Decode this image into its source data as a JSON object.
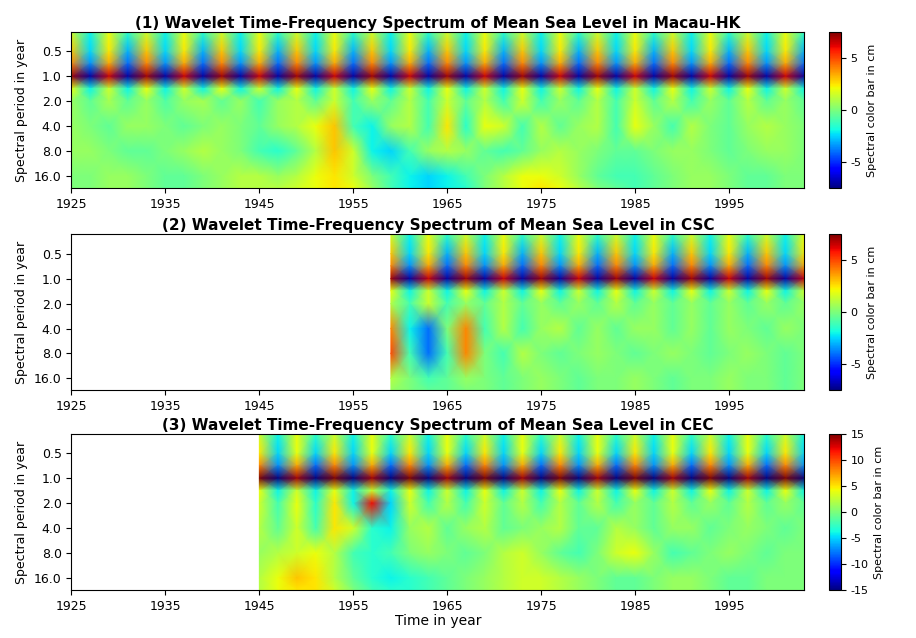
{
  "chart_data": [
    {
      "type": "heatmap",
      "title": "(1) Wavelet Time-Frequency Spectrum of Mean Sea Level in Macau-HK",
      "y_label": "Spectral period in year",
      "log": "y",
      "xlim": [
        1925,
        2003
      ],
      "xticks": [
        1925,
        1935,
        1945,
        1955,
        1965,
        1975,
        1985,
        1995
      ],
      "ylim": [
        22.4,
        0.29
      ],
      "yticks": [
        {
          "value": 0.5,
          "label": "0.5"
        },
        {
          "value": 1,
          "label": "1.0"
        },
        {
          "value": 2,
          "label": "2.0"
        },
        {
          "value": 4,
          "label": "4.0"
        },
        {
          "value": 8,
          "label": "8.0"
        },
        {
          "value": 16,
          "label": "16.0"
        }
      ],
      "x": [
        1925,
        1927,
        1929,
        1931,
        1933,
        1935,
        1937,
        1939,
        1941,
        1943,
        1945,
        1947,
        1949,
        1951,
        1953,
        1955,
        1957,
        1959,
        1961,
        1963,
        1965,
        1967,
        1969,
        1971,
        1973,
        1975,
        1977,
        1979,
        1981,
        1983,
        1985,
        1987,
        1989,
        1991,
        1993,
        1995,
        1997,
        1999,
        2001,
        2003
      ],
      "y": [
        0.29,
        0.5,
        0.7,
        1.0,
        1.4,
        2.0,
        4.0,
        8.0,
        16.0,
        22.4
      ],
      "cells": [
        [
          1.5,
          -2,
          2,
          -1.5,
          1.5,
          -2,
          2,
          -1.5,
          1.5,
          -2,
          2,
          -1.5,
          1.5,
          -2,
          2,
          -1.5,
          1.5,
          -2,
          2,
          -1.5,
          1.5,
          -2,
          2,
          -1.5,
          1.5,
          -2,
          2,
          -1.5,
          1.5,
          -2,
          2,
          -1.5,
          1.5,
          -2,
          2,
          -1.5,
          1.5,
          -2,
          2,
          -1.5
        ],
        [
          3,
          -2.5,
          2.5,
          -3,
          3,
          -2.5,
          2.5,
          -3,
          3,
          -2.5,
          2.5,
          -3,
          3,
          -2.5,
          2.5,
          -3,
          3,
          -2.5,
          2.5,
          -3,
          3,
          -2.5,
          2.5,
          -3,
          3,
          -2.5,
          2.5,
          -3,
          3,
          -2.5,
          2.5,
          -3,
          3,
          -2.5,
          2.5,
          -3,
          3,
          -2.5,
          2.5,
          -3
        ],
        [
          4,
          -3.5,
          3.5,
          -4,
          4,
          -3.5,
          3.5,
          -4,
          4,
          -3.5,
          3.5,
          -4,
          4,
          -3.5,
          3.5,
          -4,
          4,
          -3.5,
          3.5,
          -4,
          4,
          -3.5,
          3.5,
          -4,
          4,
          -3.5,
          3.5,
          -4,
          4,
          -3.5,
          3.5,
          -4,
          4,
          -3.5,
          3.5,
          -4,
          4,
          -3.5,
          3.5,
          -4
        ],
        [
          7,
          -7,
          6.5,
          -7,
          7,
          -7,
          6.5,
          -7,
          7,
          -7,
          6.5,
          -7,
          7,
          -7,
          6.5,
          -7,
          7,
          -7,
          6.5,
          -7,
          7,
          -7,
          6.5,
          -7,
          7,
          -7,
          6.5,
          -7,
          7,
          -7,
          6.5,
          -7,
          7,
          -7,
          6.5,
          -7,
          7,
          -7,
          6.5,
          -7
        ],
        [
          2,
          -2,
          1.5,
          -2,
          2,
          -2,
          1.5,
          -2,
          2,
          -2,
          1.5,
          -2,
          2,
          -2,
          1.5,
          -2,
          2,
          -2,
          1.5,
          -2,
          2,
          -2,
          1.5,
          -2,
          2,
          -2,
          1.5,
          -2,
          2,
          -2,
          1.5,
          -2,
          2,
          -2,
          1.5,
          -2,
          2,
          -2,
          1.5,
          -2
        ],
        [
          0.5,
          -0.5,
          0.8,
          -0.5,
          0.5,
          -0.8,
          0.5,
          0.8,
          -0.5,
          0.5,
          -1,
          0.5,
          1,
          -0.5,
          1.5,
          -1,
          0.5,
          -0.5,
          1,
          -1,
          1.5,
          -0.5,
          1,
          -1,
          1.5,
          -1,
          0.5,
          -0.5,
          1,
          -1,
          1.5,
          -0.5,
          1,
          -1,
          0.5,
          -0.5,
          1,
          -0.5,
          0.5,
          -0.5
        ],
        [
          0.5,
          0,
          -0.5,
          0.5,
          0.5,
          0,
          -0.5,
          0,
          0.5,
          0,
          -0.5,
          0.5,
          1,
          2,
          3,
          -1,
          -2,
          0.5,
          1,
          -1,
          2.5,
          -1.5,
          2,
          1.5,
          -1,
          1,
          -0.5,
          0.5,
          1,
          -1,
          2,
          0.5,
          -1,
          1,
          0,
          -0.5,
          0.5,
          1,
          0.5,
          0
        ],
        [
          0.5,
          0.5,
          0,
          -0.5,
          -0.5,
          0,
          0.5,
          1,
          0.5,
          0,
          -1,
          -1.5,
          -0.5,
          1,
          3,
          1.5,
          -2,
          -2.5,
          -1,
          0.5,
          1,
          0.5,
          -0.5,
          -1,
          -0.5,
          0.5,
          1,
          0.5,
          0,
          -0.5,
          -0.5,
          0,
          0.5,
          0.5,
          0,
          -0.5,
          0,
          0.5,
          0.5,
          0
        ],
        [
          0,
          0,
          0.5,
          0.5,
          0,
          -0.5,
          -0.5,
          0,
          0.5,
          1,
          1,
          0.5,
          1,
          2,
          2.5,
          1.5,
          0,
          -1,
          -2,
          -2.5,
          -2,
          -1,
          0,
          1,
          2,
          2,
          1.5,
          0.5,
          -0.5,
          -1,
          -1,
          -0.5,
          0,
          0.5,
          0.5,
          0,
          -0.5,
          -0.5,
          0,
          0
        ],
        [
          0,
          0,
          0.5,
          0.5,
          0,
          -0.5,
          -0.5,
          0,
          0.5,
          1,
          1,
          1,
          1.5,
          2,
          2.5,
          2,
          0.5,
          -1,
          -2,
          -2.5,
          -2,
          -1.5,
          0,
          1,
          2,
          2.5,
          2,
          1,
          0,
          -0.5,
          -1,
          -0.5,
          0,
          0.5,
          0.5,
          0,
          -0.5,
          -0.5,
          0,
          0
        ]
      ],
      "colorbar": {
        "label": "Spectral color bar in cm",
        "range": [
          -7.5,
          7.5
        ],
        "ticks": [
          -5,
          0,
          5
        ]
      }
    },
    {
      "type": "heatmap",
      "title": "(2) Wavelet Time-Frequency Spectrum of Mean Sea Level in CSC",
      "y_label": "Spectral period in year",
      "log": "y",
      "xlim": [
        1925,
        2003
      ],
      "xticks": [
        1925,
        1935,
        1945,
        1955,
        1965,
        1975,
        1985,
        1995
      ],
      "ylim": [
        22.4,
        0.29
      ],
      "yticks": [
        {
          "value": 0.5,
          "label": "0.5"
        },
        {
          "value": 1,
          "label": "1.0"
        },
        {
          "value": 2,
          "label": "2.0"
        },
        {
          "value": 4,
          "label": "4.0"
        },
        {
          "value": 8,
          "label": "8.0"
        },
        {
          "value": 16,
          "label": "16.0"
        }
      ],
      "x": [
        1959,
        1961,
        1963,
        1965,
        1967,
        1969,
        1971,
        1973,
        1975,
        1977,
        1979,
        1981,
        1983,
        1985,
        1987,
        1989,
        1991,
        1993,
        1995,
        1997,
        1999,
        2001,
        2003
      ],
      "y": [
        0.29,
        0.5,
        0.7,
        1.0,
        1.4,
        2.0,
        4.0,
        8.0,
        16.0,
        22.4
      ],
      "cells": [
        [
          1.5,
          -2,
          2,
          -1.5,
          1.5,
          -2,
          2,
          -1.5,
          1.5,
          -2,
          2,
          -1.5,
          1.5,
          -2,
          2,
          -1.5,
          1.5,
          -2,
          2,
          -1.5,
          1.5,
          -2,
          2
        ],
        [
          3,
          -2.5,
          2.5,
          -3,
          3,
          -2.5,
          2.5,
          -3,
          3,
          -2.5,
          2.5,
          -3,
          3,
          -2.5,
          2.5,
          -3,
          3,
          -2.5,
          2.5,
          -3,
          3,
          -2.5,
          2.5
        ],
        [
          4,
          -3.5,
          3.5,
          -4,
          4,
          -3.5,
          3.5,
          -4,
          4,
          -3.5,
          3.5,
          -4,
          4,
          -3.5,
          3.5,
          -4,
          4,
          -3.5,
          3.5,
          -4,
          4,
          -3.5,
          3.5
        ],
        [
          7,
          -7,
          6.5,
          -7,
          7,
          -7,
          6.5,
          -7,
          7,
          -7,
          6.5,
          -7,
          7,
          -7,
          6.5,
          -7,
          7,
          -7,
          6.5,
          -7,
          7,
          -7,
          6.5
        ],
        [
          2,
          -2,
          1.5,
          -2,
          2,
          -2,
          1.5,
          -2,
          2,
          -2,
          1.5,
          -2,
          2,
          -2,
          1.5,
          -2,
          2,
          -2,
          1.5,
          -2,
          2,
          -2,
          1.5
        ],
        [
          1,
          -1,
          1.5,
          -1,
          0.5,
          -0.5,
          1,
          -0.5,
          0.5,
          -0.5,
          0.5,
          -0.5,
          1,
          -0.5,
          0.5,
          -0.5,
          0.5,
          -0.5,
          0.5,
          -0.5,
          0.5,
          -0.5,
          0.5
        ],
        [
          4,
          -2,
          -4,
          0,
          4,
          -1,
          1,
          -1,
          0.5,
          1,
          -0.5,
          0.5,
          -0.5,
          0.5,
          0.5,
          -0.5,
          0.5,
          -0.5,
          0.5,
          0,
          -0.5,
          0.5,
          0
        ],
        [
          5,
          -1,
          -4,
          -1,
          4,
          0,
          -1,
          1,
          0,
          -0.5,
          0,
          0.5,
          0,
          -0.5,
          0,
          0.5,
          0,
          -0.5,
          0,
          0.5,
          0,
          -0.5,
          0
        ],
        [
          1,
          0,
          -1,
          -0.5,
          0.5,
          0,
          -0.5,
          0,
          0.5,
          0,
          -0.5,
          0,
          0,
          0.5,
          0,
          -0.5,
          0,
          0,
          0.5,
          0,
          0,
          -0.5,
          0
        ],
        [
          0.5,
          0,
          -0.5,
          -0.5,
          0,
          0,
          -0.5,
          0,
          0.5,
          0,
          -0.5,
          0,
          0,
          0.5,
          0,
          -0.5,
          0,
          0,
          0.5,
          0,
          0,
          -0.5,
          0
        ]
      ],
      "colorbar": {
        "label": "Spectral color bar in cm",
        "range": [
          -7.5,
          7.5
        ],
        "ticks": [
          -5,
          0,
          5
        ]
      }
    },
    {
      "type": "heatmap",
      "title": "(3) Wavelet Time-Frequency Spectrum of Mean Sea Level in CEC",
      "x_label": "Time in year",
      "y_label": "Spectral period in year",
      "log": "y",
      "xlim": [
        1925,
        2003
      ],
      "xticks": [
        1925,
        1935,
        1945,
        1955,
        1965,
        1975,
        1985,
        1995
      ],
      "ylim": [
        22.4,
        0.29
      ],
      "yticks": [
        {
          "value": 0.5,
          "label": "0.5"
        },
        {
          "value": 1,
          "label": "1.0"
        },
        {
          "value": 2,
          "label": "2.0"
        },
        {
          "value": 4,
          "label": "4.0"
        },
        {
          "value": 8,
          "label": "8.0"
        },
        {
          "value": 16,
          "label": "16.0"
        }
      ],
      "x": [
        1945,
        1947,
        1949,
        1951,
        1953,
        1955,
        1957,
        1959,
        1961,
        1963,
        1965,
        1967,
        1969,
        1971,
        1973,
        1975,
        1977,
        1979,
        1981,
        1983,
        1985,
        1987,
        1989,
        1991,
        1993,
        1995,
        1997,
        1999,
        2001,
        2003
      ],
      "y": [
        0.29,
        0.5,
        0.7,
        1.0,
        1.4,
        2.0,
        4.0,
        8.0,
        16.0,
        22.4
      ],
      "cells": [
        [
          3,
          -4,
          4,
          -3,
          3,
          -4,
          4,
          -3,
          3,
          -4,
          4,
          -3,
          3,
          -4,
          4,
          -3,
          3,
          -4,
          4,
          -3,
          3,
          -4,
          4,
          -3,
          3,
          -4,
          4,
          -3,
          3,
          -4
        ],
        [
          5,
          -5,
          4,
          -5,
          5,
          -5,
          4,
          -5,
          5,
          -5,
          4,
          -5,
          5,
          -5,
          4,
          -5,
          5,
          -5,
          4,
          -5,
          5,
          -5,
          4,
          -5,
          5,
          -5,
          4,
          -5,
          5,
          -5
        ],
        [
          8,
          -7,
          7,
          -8,
          8,
          -7,
          7,
          -8,
          8,
          -7,
          7,
          -8,
          8,
          -7,
          7,
          -8,
          8,
          -7,
          7,
          -8,
          8,
          -7,
          7,
          -8,
          8,
          -7,
          7,
          -8,
          8,
          -7
        ],
        [
          15,
          -15,
          14,
          -15,
          15,
          -15,
          14,
          -15,
          15,
          -15,
          14,
          -15,
          15,
          -15,
          14,
          -15,
          15,
          -15,
          14,
          -15,
          15,
          -15,
          14,
          -15,
          15,
          -15,
          14,
          -15,
          15,
          -15
        ],
        [
          4,
          -4,
          3,
          -4,
          4,
          -4,
          3,
          -4,
          4,
          -4,
          3,
          -4,
          4,
          -4,
          3,
          -4,
          4,
          -4,
          3,
          -4,
          4,
          -4,
          3,
          -4,
          4,
          -4,
          3,
          -4,
          4,
          -4
        ],
        [
          3,
          -2,
          4,
          -3,
          5,
          -4,
          12,
          -5,
          3,
          -2,
          2,
          -2,
          3,
          -1,
          2,
          -2,
          2,
          -1,
          2,
          -2,
          1,
          -1,
          2,
          -1,
          1,
          -1,
          2,
          -1,
          1,
          -1
        ],
        [
          2,
          -1,
          3,
          -2,
          5,
          3,
          -3,
          -4,
          1,
          2,
          -1,
          1,
          2,
          -1,
          0,
          1,
          2,
          -1,
          -1,
          2,
          1,
          -1,
          1,
          1,
          -1,
          0,
          1,
          0,
          -1,
          0
        ],
        [
          1,
          2,
          3,
          4,
          2,
          -2,
          -3,
          -2,
          0,
          1,
          0,
          -1,
          0,
          2,
          3,
          1,
          -1,
          -2,
          0,
          3,
          4,
          1,
          -2,
          -1,
          0,
          1,
          0,
          -1,
          0,
          0
        ],
        [
          2,
          4,
          6,
          5,
          2,
          -1,
          -3,
          -4,
          -3,
          -2,
          -1,
          0,
          1,
          2,
          3,
          3,
          2,
          1,
          0,
          -1,
          -1,
          0,
          1,
          1,
          0,
          -1,
          -1,
          0,
          0,
          0
        ],
        [
          2,
          4,
          5,
          5,
          3,
          0,
          -2,
          -3,
          -3,
          -2,
          -1,
          0,
          1,
          2,
          3,
          3,
          2,
          1,
          0,
          -1,
          -1,
          0,
          1,
          1,
          0,
          -1,
          -1,
          0,
          0,
          0
        ]
      ],
      "colorbar": {
        "label": "Spectral color bar in cm",
        "range": [
          -15,
          15
        ],
        "ticks": [
          -15,
          -10,
          -5,
          0,
          5,
          10,
          15
        ]
      }
    }
  ]
}
